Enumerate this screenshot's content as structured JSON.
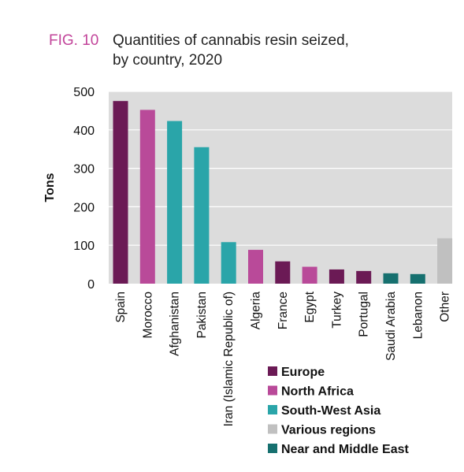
{
  "figure": {
    "label": "FIG. 10",
    "title_line1": "Quantities of cannabis resin seized,",
    "title_line2": "by country, 2020"
  },
  "colors": {
    "label": "#c2449a",
    "plot_background": "#dcdcdc",
    "gridline": "#ffffff",
    "Europe": "#6b1a55",
    "North Africa": "#b94a99",
    "South-West Asia": "#2aa5a9",
    "Various regions": "#c0c0c0",
    "Near and Middle East": "#16706f"
  },
  "chart_data": {
    "type": "bar",
    "title": "Quantities of cannabis resin seized, by country, 2020",
    "xlabel": "",
    "ylabel": "Tons",
    "ylim": [
      0,
      500
    ],
    "yticks": [
      0,
      100,
      200,
      300,
      400,
      500
    ],
    "grid": true,
    "legend_position": "bottom-right",
    "categories": [
      "Spain",
      "Morocco",
      "Afghanistan",
      "Pakistan",
      "Iran (Islamic Republic of)",
      "Algeria",
      "France",
      "Egypt",
      "Turkey",
      "Portugal",
      "Saudi Arabia",
      "Lebanon",
      "Other"
    ],
    "values": [
      475,
      452,
      423,
      355,
      108,
      88,
      58,
      44,
      37,
      33,
      27,
      25,
      118
    ],
    "regions": [
      "Europe",
      "North Africa",
      "South-West Asia",
      "South-West Asia",
      "South-West Asia",
      "North Africa",
      "Europe",
      "North Africa",
      "Europe",
      "Europe",
      "Near and Middle East",
      "Near and Middle East",
      "Various regions"
    ],
    "legend": [
      "Europe",
      "North Africa",
      "South-West Asia",
      "Various regions",
      "Near and Middle East"
    ]
  }
}
